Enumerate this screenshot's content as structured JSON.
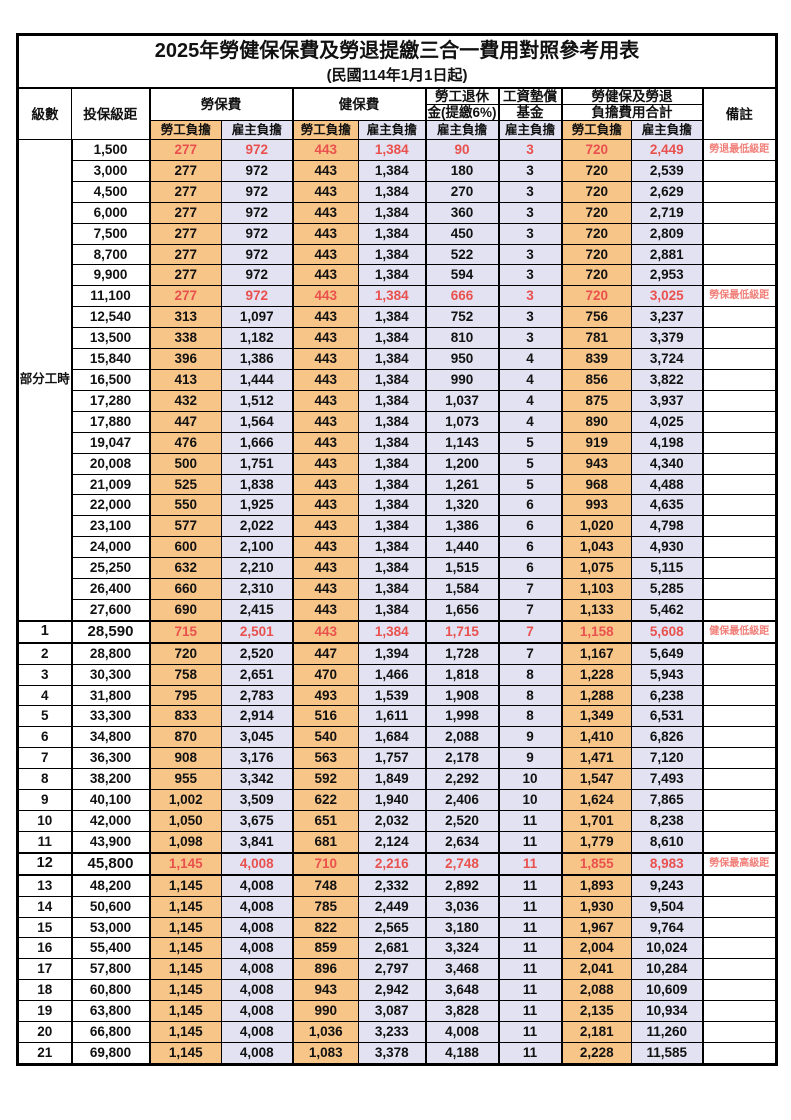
{
  "title": "2025年勞健保保費及勞退提繳三合一費用對照參考用表",
  "subtitle": "(民國114年1月1日起)",
  "header": {
    "level": "級數",
    "bracket": "投保級距",
    "labor": "勞保費",
    "health": "健保費",
    "pension_l1": "勞工退休",
    "pension_l2": "金(提繳6%)",
    "wage_l1": "工資墊償",
    "wage_l2": "基金",
    "total_l1": "勞健保及勞退",
    "total_l2": "負擔費用合計",
    "remark": "備註",
    "worker": "勞工負擔",
    "employer": "雇主負擔"
  },
  "group_label": "部分工時",
  "colors": {
    "worker_bg": "#F8C588",
    "employer_bg": "#E2E2F2",
    "red_text": "#E9514E",
    "remark_red": "#F2807A"
  },
  "rows": [
    {
      "level": "",
      "bracket": "1,500",
      "labor_w": "277",
      "labor_e": "972",
      "health_w": "443",
      "health_e": "1,384",
      "pension_e": "90",
      "wage_e": "3",
      "total_w": "720",
      "total_e": "2,449",
      "remark": "勞退最低級距",
      "red": true,
      "em": false
    },
    {
      "level": "",
      "bracket": "3,000",
      "labor_w": "277",
      "labor_e": "972",
      "health_w": "443",
      "health_e": "1,384",
      "pension_e": "180",
      "wage_e": "3",
      "total_w": "720",
      "total_e": "2,539",
      "remark": "",
      "red": false,
      "em": false
    },
    {
      "level": "",
      "bracket": "4,500",
      "labor_w": "277",
      "labor_e": "972",
      "health_w": "443",
      "health_e": "1,384",
      "pension_e": "270",
      "wage_e": "3",
      "total_w": "720",
      "total_e": "2,629",
      "remark": "",
      "red": false,
      "em": false
    },
    {
      "level": "",
      "bracket": "6,000",
      "labor_w": "277",
      "labor_e": "972",
      "health_w": "443",
      "health_e": "1,384",
      "pension_e": "360",
      "wage_e": "3",
      "total_w": "720",
      "total_e": "2,719",
      "remark": "",
      "red": false,
      "em": false
    },
    {
      "level": "",
      "bracket": "7,500",
      "labor_w": "277",
      "labor_e": "972",
      "health_w": "443",
      "health_e": "1,384",
      "pension_e": "450",
      "wage_e": "3",
      "total_w": "720",
      "total_e": "2,809",
      "remark": "",
      "red": false,
      "em": false
    },
    {
      "level": "",
      "bracket": "8,700",
      "labor_w": "277",
      "labor_e": "972",
      "health_w": "443",
      "health_e": "1,384",
      "pension_e": "522",
      "wage_e": "3",
      "total_w": "720",
      "total_e": "2,881",
      "remark": "",
      "red": false,
      "em": false
    },
    {
      "level": "",
      "bracket": "9,900",
      "labor_w": "277",
      "labor_e": "972",
      "health_w": "443",
      "health_e": "1,384",
      "pension_e": "594",
      "wage_e": "3",
      "total_w": "720",
      "total_e": "2,953",
      "remark": "",
      "red": false,
      "em": false
    },
    {
      "level": "",
      "bracket": "11,100",
      "labor_w": "277",
      "labor_e": "972",
      "health_w": "443",
      "health_e": "1,384",
      "pension_e": "666",
      "wage_e": "3",
      "total_w": "720",
      "total_e": "3,025",
      "remark": "勞保最低級距",
      "red": true,
      "em": false
    },
    {
      "level": "",
      "bracket": "12,540",
      "labor_w": "313",
      "labor_e": "1,097",
      "health_w": "443",
      "health_e": "1,384",
      "pension_e": "752",
      "wage_e": "3",
      "total_w": "756",
      "total_e": "3,237",
      "remark": "",
      "red": false,
      "em": false
    },
    {
      "level": "",
      "bracket": "13,500",
      "labor_w": "338",
      "labor_e": "1,182",
      "health_w": "443",
      "health_e": "1,384",
      "pension_e": "810",
      "wage_e": "3",
      "total_w": "781",
      "total_e": "3,379",
      "remark": "",
      "red": false,
      "em": false
    },
    {
      "level": "",
      "bracket": "15,840",
      "labor_w": "396",
      "labor_e": "1,386",
      "health_w": "443",
      "health_e": "1,384",
      "pension_e": "950",
      "wage_e": "4",
      "total_w": "839",
      "total_e": "3,724",
      "remark": "",
      "red": false,
      "em": false
    },
    {
      "level": "",
      "bracket": "16,500",
      "labor_w": "413",
      "labor_e": "1,444",
      "health_w": "443",
      "health_e": "1,384",
      "pension_e": "990",
      "wage_e": "4",
      "total_w": "856",
      "total_e": "3,822",
      "remark": "",
      "red": false,
      "em": false
    },
    {
      "level": "",
      "bracket": "17,280",
      "labor_w": "432",
      "labor_e": "1,512",
      "health_w": "443",
      "health_e": "1,384",
      "pension_e": "1,037",
      "wage_e": "4",
      "total_w": "875",
      "total_e": "3,937",
      "remark": "",
      "red": false,
      "em": false
    },
    {
      "level": "",
      "bracket": "17,880",
      "labor_w": "447",
      "labor_e": "1,564",
      "health_w": "443",
      "health_e": "1,384",
      "pension_e": "1,073",
      "wage_e": "4",
      "total_w": "890",
      "total_e": "4,025",
      "remark": "",
      "red": false,
      "em": false
    },
    {
      "level": "",
      "bracket": "19,047",
      "labor_w": "476",
      "labor_e": "1,666",
      "health_w": "443",
      "health_e": "1,384",
      "pension_e": "1,143",
      "wage_e": "5",
      "total_w": "919",
      "total_e": "4,198",
      "remark": "",
      "red": false,
      "em": false
    },
    {
      "level": "",
      "bracket": "20,008",
      "labor_w": "500",
      "labor_e": "1,751",
      "health_w": "443",
      "health_e": "1,384",
      "pension_e": "1,200",
      "wage_e": "5",
      "total_w": "943",
      "total_e": "4,340",
      "remark": "",
      "red": false,
      "em": false
    },
    {
      "level": "",
      "bracket": "21,009",
      "labor_w": "525",
      "labor_e": "1,838",
      "health_w": "443",
      "health_e": "1,384",
      "pension_e": "1,261",
      "wage_e": "5",
      "total_w": "968",
      "total_e": "4,488",
      "remark": "",
      "red": false,
      "em": false
    },
    {
      "level": "",
      "bracket": "22,000",
      "labor_w": "550",
      "labor_e": "1,925",
      "health_w": "443",
      "health_e": "1,384",
      "pension_e": "1,320",
      "wage_e": "6",
      "total_w": "993",
      "total_e": "4,635",
      "remark": "",
      "red": false,
      "em": false
    },
    {
      "level": "",
      "bracket": "23,100",
      "labor_w": "577",
      "labor_e": "2,022",
      "health_w": "443",
      "health_e": "1,384",
      "pension_e": "1,386",
      "wage_e": "6",
      "total_w": "1,020",
      "total_e": "4,798",
      "remark": "",
      "red": false,
      "em": false
    },
    {
      "level": "",
      "bracket": "24,000",
      "labor_w": "600",
      "labor_e": "2,100",
      "health_w": "443",
      "health_e": "1,384",
      "pension_e": "1,440",
      "wage_e": "6",
      "total_w": "1,043",
      "total_e": "4,930",
      "remark": "",
      "red": false,
      "em": false
    },
    {
      "level": "",
      "bracket": "25,250",
      "labor_w": "632",
      "labor_e": "2,210",
      "health_w": "443",
      "health_e": "1,384",
      "pension_e": "1,515",
      "wage_e": "6",
      "total_w": "1,075",
      "total_e": "5,115",
      "remark": "",
      "red": false,
      "em": false
    },
    {
      "level": "",
      "bracket": "26,400",
      "labor_w": "660",
      "labor_e": "2,310",
      "health_w": "443",
      "health_e": "1,384",
      "pension_e": "1,584",
      "wage_e": "7",
      "total_w": "1,103",
      "total_e": "5,285",
      "remark": "",
      "red": false,
      "em": false
    },
    {
      "level": "",
      "bracket": "27,600",
      "labor_w": "690",
      "labor_e": "2,415",
      "health_w": "443",
      "health_e": "1,384",
      "pension_e": "1,656",
      "wage_e": "7",
      "total_w": "1,133",
      "total_e": "5,462",
      "remark": "",
      "red": false,
      "em": false
    },
    {
      "level": "1",
      "bracket": "28,590",
      "labor_w": "715",
      "labor_e": "2,501",
      "health_w": "443",
      "health_e": "1,384",
      "pension_e": "1,715",
      "wage_e": "7",
      "total_w": "1,158",
      "total_e": "5,608",
      "remark": "健保最低級距",
      "red": true,
      "em": true
    },
    {
      "level": "2",
      "bracket": "28,800",
      "labor_w": "720",
      "labor_e": "2,520",
      "health_w": "447",
      "health_e": "1,394",
      "pension_e": "1,728",
      "wage_e": "7",
      "total_w": "1,167",
      "total_e": "5,649",
      "remark": "",
      "red": false,
      "em": false
    },
    {
      "level": "3",
      "bracket": "30,300",
      "labor_w": "758",
      "labor_e": "2,651",
      "health_w": "470",
      "health_e": "1,466",
      "pension_e": "1,818",
      "wage_e": "8",
      "total_w": "1,228",
      "total_e": "5,943",
      "remark": "",
      "red": false,
      "em": false
    },
    {
      "level": "4",
      "bracket": "31,800",
      "labor_w": "795",
      "labor_e": "2,783",
      "health_w": "493",
      "health_e": "1,539",
      "pension_e": "1,908",
      "wage_e": "8",
      "total_w": "1,288",
      "total_e": "6,238",
      "remark": "",
      "red": false,
      "em": false
    },
    {
      "level": "5",
      "bracket": "33,300",
      "labor_w": "833",
      "labor_e": "2,914",
      "health_w": "516",
      "health_e": "1,611",
      "pension_e": "1,998",
      "wage_e": "8",
      "total_w": "1,349",
      "total_e": "6,531",
      "remark": "",
      "red": false,
      "em": false
    },
    {
      "level": "6",
      "bracket": "34,800",
      "labor_w": "870",
      "labor_e": "3,045",
      "health_w": "540",
      "health_e": "1,684",
      "pension_e": "2,088",
      "wage_e": "9",
      "total_w": "1,410",
      "total_e": "6,826",
      "remark": "",
      "red": false,
      "em": false
    },
    {
      "level": "7",
      "bracket": "36,300",
      "labor_w": "908",
      "labor_e": "3,176",
      "health_w": "563",
      "health_e": "1,757",
      "pension_e": "2,178",
      "wage_e": "9",
      "total_w": "1,471",
      "total_e": "7,120",
      "remark": "",
      "red": false,
      "em": false
    },
    {
      "level": "8",
      "bracket": "38,200",
      "labor_w": "955",
      "labor_e": "3,342",
      "health_w": "592",
      "health_e": "1,849",
      "pension_e": "2,292",
      "wage_e": "10",
      "total_w": "1,547",
      "total_e": "7,493",
      "remark": "",
      "red": false,
      "em": false
    },
    {
      "level": "9",
      "bracket": "40,100",
      "labor_w": "1,002",
      "labor_e": "3,509",
      "health_w": "622",
      "health_e": "1,940",
      "pension_e": "2,406",
      "wage_e": "10",
      "total_w": "1,624",
      "total_e": "7,865",
      "remark": "",
      "red": false,
      "em": false
    },
    {
      "level": "10",
      "bracket": "42,000",
      "labor_w": "1,050",
      "labor_e": "3,675",
      "health_w": "651",
      "health_e": "2,032",
      "pension_e": "2,520",
      "wage_e": "11",
      "total_w": "1,701",
      "total_e": "8,238",
      "remark": "",
      "red": false,
      "em": false
    },
    {
      "level": "11",
      "bracket": "43,900",
      "labor_w": "1,098",
      "labor_e": "3,841",
      "health_w": "681",
      "health_e": "2,124",
      "pension_e": "2,634",
      "wage_e": "11",
      "total_w": "1,779",
      "total_e": "8,610",
      "remark": "",
      "red": false,
      "em": false
    },
    {
      "level": "12",
      "bracket": "45,800",
      "labor_w": "1,145",
      "labor_e": "4,008",
      "health_w": "710",
      "health_e": "2,216",
      "pension_e": "2,748",
      "wage_e": "11",
      "total_w": "1,855",
      "total_e": "8,983",
      "remark": "勞保最高級距",
      "red": true,
      "em": true
    },
    {
      "level": "13",
      "bracket": "48,200",
      "labor_w": "1,145",
      "labor_e": "4,008",
      "health_w": "748",
      "health_e": "2,332",
      "pension_e": "2,892",
      "wage_e": "11",
      "total_w": "1,893",
      "total_e": "9,243",
      "remark": "",
      "red": false,
      "em": false
    },
    {
      "level": "14",
      "bracket": "50,600",
      "labor_w": "1,145",
      "labor_e": "4,008",
      "health_w": "785",
      "health_e": "2,449",
      "pension_e": "3,036",
      "wage_e": "11",
      "total_w": "1,930",
      "total_e": "9,504",
      "remark": "",
      "red": false,
      "em": false
    },
    {
      "level": "15",
      "bracket": "53,000",
      "labor_w": "1,145",
      "labor_e": "4,008",
      "health_w": "822",
      "health_e": "2,565",
      "pension_e": "3,180",
      "wage_e": "11",
      "total_w": "1,967",
      "total_e": "9,764",
      "remark": "",
      "red": false,
      "em": false
    },
    {
      "level": "16",
      "bracket": "55,400",
      "labor_w": "1,145",
      "labor_e": "4,008",
      "health_w": "859",
      "health_e": "2,681",
      "pension_e": "3,324",
      "wage_e": "11",
      "total_w": "2,004",
      "total_e": "10,024",
      "remark": "",
      "red": false,
      "em": false
    },
    {
      "level": "17",
      "bracket": "57,800",
      "labor_w": "1,145",
      "labor_e": "4,008",
      "health_w": "896",
      "health_e": "2,797",
      "pension_e": "3,468",
      "wage_e": "11",
      "total_w": "2,041",
      "total_e": "10,284",
      "remark": "",
      "red": false,
      "em": false
    },
    {
      "level": "18",
      "bracket": "60,800",
      "labor_w": "1,145",
      "labor_e": "4,008",
      "health_w": "943",
      "health_e": "2,942",
      "pension_e": "3,648",
      "wage_e": "11",
      "total_w": "2,088",
      "total_e": "10,609",
      "remark": "",
      "red": false,
      "em": false
    },
    {
      "level": "19",
      "bracket": "63,800",
      "labor_w": "1,145",
      "labor_e": "4,008",
      "health_w": "990",
      "health_e": "3,087",
      "pension_e": "3,828",
      "wage_e": "11",
      "total_w": "2,135",
      "total_e": "10,934",
      "remark": "",
      "red": false,
      "em": false
    },
    {
      "level": "20",
      "bracket": "66,800",
      "labor_w": "1,145",
      "labor_e": "4,008",
      "health_w": "1,036",
      "health_e": "3,233",
      "pension_e": "4,008",
      "wage_e": "11",
      "total_w": "2,181",
      "total_e": "11,260",
      "remark": "",
      "red": false,
      "em": false
    },
    {
      "level": "21",
      "bracket": "69,800",
      "labor_w": "1,145",
      "labor_e": "4,008",
      "health_w": "1,083",
      "health_e": "3,378",
      "pension_e": "4,188",
      "wage_e": "11",
      "total_w": "2,228",
      "total_e": "11,585",
      "remark": "",
      "red": false,
      "em": false
    }
  ]
}
